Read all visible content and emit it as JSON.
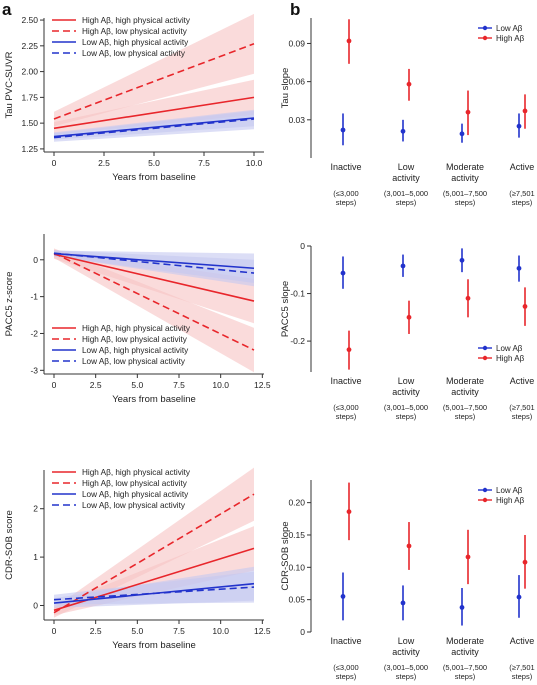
{
  "colors": {
    "red": "#e8262b",
    "blue": "#2233cc",
    "red_band": "#f7c3c3",
    "blue_band": "#c4c8f0",
    "axis": "#333333"
  },
  "panel_labels": {
    "a": "a",
    "b": "b"
  },
  "chart_data": [
    {
      "type": "line",
      "id": "a1",
      "xlabel": "Years from baseline",
      "ylabel": "Tau PVC-SUVR",
      "xlim": [
        -0.5,
        10.5
      ],
      "ylim": [
        1.22,
        2.52
      ],
      "xticks": [
        0,
        2.5,
        5,
        7.5,
        10
      ],
      "xtick_labels": [
        "0",
        "2.5",
        "5.0",
        "7.5",
        "10.0"
      ],
      "yticks": [
        1.25,
        1.5,
        1.75,
        2.0,
        2.25,
        2.5
      ],
      "ytick_labels": [
        "1.25",
        "1.50",
        "1.75",
        "2.00",
        "2.25",
        "2.50"
      ],
      "legend_position": "top-left",
      "series": [
        {
          "name": "High Aβ, high physical activity",
          "color": "red",
          "dash": false,
          "x": [
            0,
            10
          ],
          "y": [
            1.45,
            1.75
          ],
          "lower": [
            1.39,
            1.58
          ],
          "upper": [
            1.51,
            1.92
          ]
        },
        {
          "name": "High Aβ, low physical activity",
          "color": "red",
          "dash": true,
          "x": [
            0,
            10
          ],
          "y": [
            1.54,
            2.27
          ],
          "lower": [
            1.47,
            1.98
          ],
          "upper": [
            1.61,
            2.56
          ]
        },
        {
          "name": "Low Aβ, high physical activity",
          "color": "blue",
          "dash": false,
          "x": [
            0,
            10
          ],
          "y": [
            1.37,
            1.55
          ],
          "lower": [
            1.34,
            1.47
          ],
          "upper": [
            1.41,
            1.63
          ]
        },
        {
          "name": "Low Aβ, low physical activity",
          "color": "blue",
          "dash": true,
          "x": [
            0,
            10
          ],
          "y": [
            1.36,
            1.54
          ],
          "lower": [
            1.32,
            1.44
          ],
          "upper": [
            1.4,
            1.62
          ]
        }
      ]
    },
    {
      "type": "line",
      "id": "a2",
      "xlabel": "Years from baseline",
      "ylabel": "PACC5 z-score",
      "xlim": [
        -0.6,
        12.6
      ],
      "ylim": [
        -3.1,
        0.7
      ],
      "xticks": [
        0,
        2.5,
        5,
        7.5,
        10,
        12.5
      ],
      "xtick_labels": [
        "0",
        "2.5",
        "5.0",
        "7.5",
        "10.0",
        "12.5"
      ],
      "yticks": [
        0,
        -1,
        -2,
        -3
      ],
      "ytick_labels": [
        "0",
        "-1",
        "-2",
        "-3"
      ],
      "legend_position": "bottom-left",
      "series": [
        {
          "name": "High Aβ, high physical activity",
          "color": "red",
          "dash": false,
          "x": [
            0,
            12
          ],
          "y": [
            0.15,
            -1.12
          ],
          "lower": [
            0.03,
            -1.72
          ],
          "upper": [
            0.27,
            -0.52
          ]
        },
        {
          "name": "High Aβ, low physical activity",
          "color": "red",
          "dash": true,
          "x": [
            0,
            12
          ],
          "y": [
            0.18,
            -2.45
          ],
          "lower": [
            0.05,
            -3.05
          ],
          "upper": [
            0.31,
            -1.85
          ]
        },
        {
          "name": "Low Aβ, high physical activity",
          "color": "blue",
          "dash": false,
          "x": [
            0,
            12
          ],
          "y": [
            0.17,
            -0.23
          ],
          "lower": [
            0.09,
            -0.63
          ],
          "upper": [
            0.25,
            0.17
          ]
        },
        {
          "name": "Low Aβ, low physical activity",
          "color": "blue",
          "dash": true,
          "x": [
            0,
            12
          ],
          "y": [
            0.18,
            -0.36
          ],
          "lower": [
            0.1,
            -0.72
          ],
          "upper": [
            0.26,
            0.0
          ]
        }
      ]
    },
    {
      "type": "line",
      "id": "a3",
      "xlabel": "Years from baseline",
      "ylabel": "CDR-SOB score",
      "xlim": [
        -0.6,
        12.6
      ],
      "ylim": [
        -0.3,
        2.8
      ],
      "xticks": [
        0,
        2.5,
        5,
        7.5,
        10,
        12.5
      ],
      "xtick_labels": [
        "0",
        "2.5",
        "5.0",
        "7.5",
        "10.0",
        "12.5"
      ],
      "yticks": [
        0,
        1,
        2
      ],
      "ytick_labels": [
        "0",
        "1",
        "2"
      ],
      "legend_position": "top-left",
      "series": [
        {
          "name": "High Aβ, high physical activity",
          "color": "red",
          "dash": false,
          "x": [
            0,
            12
          ],
          "y": [
            -0.1,
            1.18
          ],
          "lower": [
            -0.2,
            0.72
          ],
          "upper": [
            0.0,
            1.64
          ]
        },
        {
          "name": "High Aβ, low physical activity",
          "color": "red",
          "dash": true,
          "x": [
            0,
            12
          ],
          "y": [
            -0.15,
            2.3
          ],
          "lower": [
            -0.25,
            1.75
          ],
          "upper": [
            -0.05,
            2.85
          ]
        },
        {
          "name": "Low Aβ, high physical activity",
          "color": "blue",
          "dash": false,
          "x": [
            0,
            12
          ],
          "y": [
            0.05,
            0.45
          ],
          "lower": [
            -0.05,
            0.1
          ],
          "upper": [
            0.15,
            0.8
          ]
        },
        {
          "name": "Low Aβ, low physical activity",
          "color": "blue",
          "dash": true,
          "x": [
            0,
            12
          ],
          "y": [
            0.12,
            0.38
          ],
          "lower": [
            0.02,
            0.06
          ],
          "upper": [
            0.22,
            0.7
          ]
        }
      ]
    },
    {
      "type": "scatter",
      "id": "b1",
      "ylabel": "Tau slope",
      "ylim": [
        0.0,
        0.11
      ],
      "yticks": [
        0.03,
        0.06,
        0.09
      ],
      "ytick_labels": [
        "0.03",
        "0.06",
        "0.09"
      ],
      "categories": [
        "Inactive",
        "Low activity",
        "Moderate activity",
        "Active"
      ],
      "legend_position": "top-right",
      "series": [
        {
          "name": "Low Aβ",
          "color": "blue",
          "values": [
            0.022,
            0.021,
            0.019,
            0.025
          ],
          "lower": [
            0.01,
            0.013,
            0.012,
            0.016
          ],
          "upper": [
            0.035,
            0.03,
            0.027,
            0.035
          ]
        },
        {
          "name": "High Aβ",
          "color": "red",
          "values": [
            0.092,
            0.058,
            0.036,
            0.037
          ],
          "lower": [
            0.074,
            0.045,
            0.018,
            0.023
          ],
          "upper": [
            0.109,
            0.07,
            0.053,
            0.05
          ]
        }
      ]
    },
    {
      "type": "scatter",
      "id": "b2",
      "ylabel": "PACC5 slope",
      "ylim": [
        -0.265,
        0.0
      ],
      "yticks": [
        0,
        -0.1,
        -0.2
      ],
      "ytick_labels": [
        "0",
        "-0.1",
        "-0.2"
      ],
      "categories": [
        "Inactive",
        "Low activity",
        "Moderate activity",
        "Active"
      ],
      "legend_position": "bottom-right",
      "series": [
        {
          "name": "Low Aβ",
          "color": "blue",
          "values": [
            -0.057,
            -0.042,
            -0.03,
            -0.047
          ],
          "lower": [
            -0.09,
            -0.065,
            -0.055,
            -0.075
          ],
          "upper": [
            -0.022,
            -0.018,
            -0.005,
            -0.02
          ]
        },
        {
          "name": "High Aβ",
          "color": "red",
          "values": [
            -0.218,
            -0.15,
            -0.11,
            -0.127
          ],
          "lower": [
            -0.26,
            -0.185,
            -0.15,
            -0.168
          ],
          "upper": [
            -0.178,
            -0.115,
            -0.07,
            -0.087
          ]
        }
      ]
    },
    {
      "type": "scatter",
      "id": "b3",
      "ylabel": "CDR-SOB slope",
      "ylim": [
        0.0,
        0.235
      ],
      "yticks": [
        0,
        0.05,
        0.1,
        0.15,
        0.2
      ],
      "ytick_labels": [
        "0",
        "0.05",
        "0.10",
        "0.15",
        "0.20"
      ],
      "categories": [
        "Inactive",
        "Low activity",
        "Moderate activity",
        "Active"
      ],
      "legend_position": "top-right",
      "series": [
        {
          "name": "Low Aβ",
          "color": "blue",
          "values": [
            0.055,
            0.045,
            0.038,
            0.054
          ],
          "lower": [
            0.018,
            0.018,
            0.01,
            0.022
          ],
          "upper": [
            0.092,
            0.072,
            0.068,
            0.088
          ]
        },
        {
          "name": "High Aβ",
          "color": "red",
          "values": [
            0.186,
            0.133,
            0.116,
            0.108
          ],
          "lower": [
            0.142,
            0.096,
            0.074,
            0.067
          ],
          "upper": [
            0.231,
            0.17,
            0.158,
            0.15
          ]
        }
      ]
    }
  ],
  "category_labels": [
    {
      "lines": [
        "Inactive"
      ],
      "steps": [
        "(≤3,000",
        "steps)"
      ]
    },
    {
      "lines": [
        "Low",
        "activity"
      ],
      "steps": [
        "(3,001–5,000",
        "steps)"
      ]
    },
    {
      "lines": [
        "Moderate",
        "activity"
      ],
      "steps": [
        "(5,001–7,500",
        "steps)"
      ]
    },
    {
      "lines": [
        "Active"
      ],
      "steps": [
        "(≥7,501",
        "steps)"
      ]
    }
  ]
}
